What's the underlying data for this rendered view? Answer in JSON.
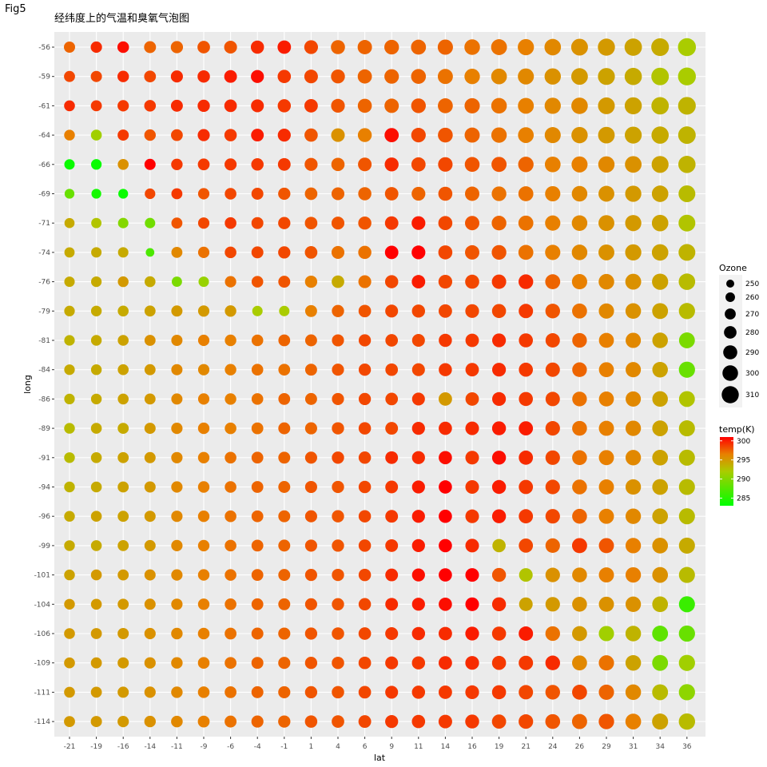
{
  "figure_label": "Fig5",
  "chart_data": {
    "type": "scatter",
    "title": "经纬度上的气温和臭氧气泡图",
    "xlabel": "lat",
    "ylabel": "long",
    "x_ticks": [
      "-21",
      "-19",
      "-16",
      "-14",
      "-11",
      "-9",
      "-6",
      "-4",
      "-1",
      "1",
      "4",
      "6",
      "9",
      "11",
      "14",
      "16",
      "19",
      "21",
      "24",
      "26",
      "29",
      "31",
      "34",
      "36"
    ],
    "y_ticks": [
      "-56",
      "-59",
      "-61",
      "-64",
      "-66",
      "-69",
      "-71",
      "-74",
      "-76",
      "-79",
      "-81",
      "-84",
      "-86",
      "-89",
      "-91",
      "-94",
      "-96",
      "-99",
      "-101",
      "-104",
      "-106",
      "-109",
      "-111",
      "-114"
    ],
    "grid": true,
    "size_legend": {
      "title": "Ozone",
      "breaks": [
        250,
        260,
        270,
        280,
        290,
        300,
        310
      ]
    },
    "color_legend": {
      "title": "temp(K)",
      "breaks": [
        300,
        295,
        290,
        285
      ],
      "range": [
        283,
        301
      ],
      "low_color": "#00ff00",
      "high_color": "#ff0000"
    },
    "colors": {
      "panel_bg": "#ebebeb",
      "grid": "#ffffff"
    },
    "ozone": [
      [
        271,
        272,
        274,
        276,
        278,
        280,
        282,
        284,
        286,
        288,
        290,
        292,
        294,
        296,
        298,
        300,
        302,
        304,
        306,
        308,
        310,
        312,
        314,
        316
      ],
      [
        270,
        271,
        273,
        275,
        277,
        279,
        281,
        283,
        285,
        287,
        289,
        291,
        293,
        295,
        297,
        299,
        301,
        303,
        305,
        307,
        309,
        311,
        313,
        315
      ],
      [
        269,
        270,
        272,
        274,
        276,
        278,
        280,
        282,
        284,
        286,
        288,
        290,
        292,
        294,
        296,
        298,
        300,
        302,
        304,
        306,
        308,
        310,
        312,
        314
      ],
      [
        268,
        269,
        271,
        273,
        275,
        277,
        279,
        281,
        283,
        285,
        287,
        289,
        291,
        293,
        295,
        297,
        299,
        301,
        303,
        305,
        307,
        309,
        311,
        313
      ],
      [
        266,
        267,
        269,
        271,
        273,
        275,
        277,
        279,
        281,
        283,
        285,
        287,
        289,
        291,
        293,
        295,
        297,
        299,
        301,
        303,
        305,
        307,
        309,
        311
      ],
      [
        262,
        262,
        262,
        267,
        270,
        272,
        274,
        276,
        278,
        280,
        282,
        284,
        286,
        288,
        290,
        292,
        294,
        296,
        298,
        300,
        302,
        304,
        306,
        308
      ],
      [
        264,
        265,
        266,
        266,
        270,
        272,
        274,
        276,
        278,
        280,
        282,
        284,
        286,
        288,
        290,
        292,
        294,
        296,
        298,
        300,
        302,
        304,
        306,
        308
      ],
      [
        265,
        266,
        266,
        254,
        270,
        272,
        274,
        276,
        278,
        280,
        282,
        284,
        286,
        288,
        290,
        292,
        294,
        296,
        298,
        300,
        302,
        304,
        306,
        308
      ],
      [
        266,
        267,
        268,
        269,
        265,
        266,
        272,
        274,
        276,
        278,
        280,
        282,
        284,
        286,
        288,
        290,
        292,
        294,
        296,
        298,
        300,
        302,
        304,
        306
      ],
      [
        267,
        268,
        269,
        270,
        271,
        272,
        273,
        266,
        266,
        276,
        278,
        280,
        282,
        284,
        286,
        288,
        290,
        292,
        294,
        296,
        298,
        300,
        302,
        304
      ],
      [
        267,
        268,
        269,
        270,
        271,
        272,
        273,
        274,
        275,
        276,
        277,
        278,
        280,
        282,
        284,
        286,
        288,
        290,
        292,
        294,
        296,
        298,
        300,
        302
      ],
      [
        267,
        268,
        269,
        270,
        271,
        272,
        273,
        274,
        275,
        276,
        277,
        278,
        280,
        282,
        284,
        286,
        288,
        290,
        292,
        294,
        296,
        298,
        300,
        304
      ],
      [
        267,
        268,
        269,
        270,
        271,
        272,
        273,
        274,
        275,
        276,
        277,
        278,
        280,
        282,
        286,
        286,
        288,
        290,
        292,
        294,
        296,
        298,
        300,
        302
      ],
      [
        268,
        269,
        270,
        271,
        272,
        273,
        274,
        275,
        276,
        277,
        278,
        279,
        281,
        283,
        285,
        287,
        289,
        291,
        293,
        295,
        297,
        299,
        301,
        303
      ],
      [
        268,
        269,
        270,
        271,
        272,
        273,
        274,
        275,
        276,
        277,
        278,
        279,
        281,
        283,
        285,
        287,
        289,
        291,
        293,
        295,
        297,
        299,
        301,
        303
      ],
      [
        268,
        269,
        270,
        271,
        272,
        273,
        274,
        275,
        276,
        277,
        278,
        279,
        281,
        283,
        285,
        287,
        289,
        291,
        293,
        295,
        297,
        299,
        301,
        303
      ],
      [
        268,
        269,
        270,
        271,
        272,
        273,
        274,
        275,
        276,
        277,
        278,
        279,
        281,
        283,
        285,
        287,
        289,
        291,
        293,
        295,
        297,
        299,
        301,
        303
      ],
      [
        268,
        269,
        270,
        271,
        272,
        273,
        274,
        275,
        276,
        277,
        278,
        279,
        281,
        283,
        285,
        287,
        285,
        291,
        293,
        297,
        297,
        299,
        301,
        303
      ],
      [
        268,
        269,
        270,
        271,
        272,
        273,
        274,
        275,
        276,
        277,
        278,
        279,
        281,
        283,
        285,
        287,
        289,
        287,
        293,
        295,
        297,
        299,
        301,
        303
      ],
      [
        268,
        269,
        270,
        271,
        272,
        273,
        274,
        275,
        276,
        277,
        278,
        279,
        281,
        283,
        285,
        287,
        289,
        287,
        293,
        295,
        297,
        299,
        301,
        303
      ],
      [
        269,
        270,
        271,
        272,
        273,
        274,
        275,
        276,
        277,
        278,
        279,
        280,
        282,
        284,
        286,
        288,
        290,
        292,
        294,
        296,
        298,
        300,
        302,
        304
      ],
      [
        269,
        270,
        271,
        272,
        273,
        274,
        275,
        276,
        277,
        278,
        279,
        280,
        282,
        284,
        286,
        288,
        290,
        292,
        294,
        296,
        298,
        300,
        302,
        304
      ],
      [
        269,
        270,
        271,
        272,
        273,
        274,
        275,
        276,
        277,
        278,
        279,
        280,
        282,
        284,
        286,
        288,
        290,
        292,
        294,
        296,
        298,
        300,
        302,
        304
      ],
      [
        270,
        271,
        272,
        273,
        274,
        275,
        276,
        277,
        278,
        279,
        280,
        281,
        283,
        285,
        287,
        289,
        291,
        293,
        295,
        297,
        299,
        301,
        303,
        305
      ]
    ],
    "temp": [
      [
        297.5,
        299.5,
        300.5,
        297.5,
        297.5,
        298,
        298,
        299.5,
        300,
        298.5,
        297.5,
        297.5,
        297.5,
        297.5,
        297.5,
        297,
        297,
        296.5,
        296,
        295.5,
        295,
        294.5,
        294,
        292
      ],
      [
        298.5,
        298.5,
        299.5,
        298.5,
        299.5,
        299.5,
        300,
        300.5,
        299,
        298.5,
        298,
        297.5,
        297.5,
        297.5,
        297,
        296.5,
        296,
        296,
        295.5,
        295,
        294.5,
        294,
        292.5,
        292
      ],
      [
        299.5,
        299,
        299,
        299,
        299.5,
        299.5,
        299.5,
        299.5,
        299,
        299,
        298,
        297.5,
        297.5,
        298,
        297.5,
        297.5,
        297,
        296.5,
        296,
        296,
        295,
        294.5,
        293.5,
        293.5
      ],
      [
        296.5,
        291.5,
        299,
        298,
        298.5,
        299.5,
        299,
        300,
        299.5,
        298,
        295.5,
        296.5,
        300.5,
        298.5,
        298,
        297.5,
        297,
        296.5,
        296,
        295.5,
        295,
        294.5,
        294,
        293.5
      ],
      [
        283.5,
        283.5,
        295.5,
        301,
        299,
        299,
        299,
        299,
        299,
        298,
        297.5,
        298,
        299.5,
        298.5,
        298.5,
        298,
        298,
        297.5,
        296.5,
        296.5,
        296,
        295.5,
        294.5,
        293.5
      ],
      [
        288.5,
        284,
        283.5,
        298.5,
        299,
        298,
        298.5,
        298.5,
        298,
        297.5,
        297.5,
        297.5,
        298,
        297.5,
        298,
        297.5,
        297,
        297,
        296.5,
        296,
        295.5,
        295,
        294.5,
        293
      ],
      [
        294,
        292.5,
        290,
        289,
        298,
        298.5,
        299,
        298.5,
        298.5,
        298,
        298,
        298,
        299,
        300,
        298.5,
        298,
        297.5,
        297,
        296.5,
        296,
        295.5,
        295,
        294.5,
        292.5
      ],
      [
        294,
        294,
        294,
        287,
        296,
        297,
        298.5,
        298.5,
        298.5,
        298,
        297,
        297,
        301,
        301,
        298.5,
        298,
        298,
        297,
        296.5,
        296,
        295.5,
        295,
        294.5,
        293.5
      ],
      [
        294,
        294,
        295,
        294,
        289.5,
        291,
        297,
        298,
        298,
        296.5,
        294,
        297,
        298.5,
        300,
        298.5,
        298.5,
        299,
        299.5,
        297.5,
        296.5,
        296,
        295.5,
        294.5,
        293
      ],
      [
        294,
        294,
        294,
        294.5,
        295,
        295,
        295,
        292,
        292,
        296.5,
        297.5,
        298,
        298.5,
        298.5,
        298.5,
        298.5,
        298.5,
        299,
        298,
        297,
        296,
        295.5,
        294.5,
        293
      ],
      [
        293.5,
        294,
        294.5,
        295.5,
        296,
        296.5,
        296.5,
        297,
        297.5,
        297.5,
        298,
        298.5,
        298.5,
        298.5,
        299,
        299,
        299.5,
        299,
        298.5,
        297.5,
        296.5,
        296,
        294.5,
        289.5
      ],
      [
        294,
        294,
        294.5,
        295,
        296,
        296,
        296.5,
        297,
        297,
        297.5,
        298,
        298.5,
        298.5,
        298.5,
        299,
        299,
        299.5,
        299,
        298.5,
        297.5,
        296.5,
        296,
        294.5,
        288.5
      ],
      [
        293.5,
        294,
        294.5,
        295,
        296,
        296.5,
        296.5,
        297,
        297.5,
        297.5,
        298,
        298.5,
        298.5,
        299,
        295,
        298.5,
        299.5,
        299,
        298.5,
        297,
        296.5,
        296,
        294.5,
        292.5
      ],
      [
        293,
        294,
        294,
        295,
        296,
        296.5,
        296.5,
        297,
        297.5,
        297.5,
        298,
        298.5,
        298.5,
        299.5,
        299.5,
        299.5,
        300,
        300,
        298.5,
        297,
        296.5,
        296,
        294.5,
        293
      ],
      [
        293,
        294,
        294.5,
        295,
        296,
        296.5,
        297,
        297.5,
        297.5,
        298,
        298.5,
        298.5,
        299.5,
        299.5,
        300.5,
        299,
        300.5,
        299.5,
        298.5,
        297,
        296.5,
        296,
        294.5,
        293
      ],
      [
        293.5,
        294,
        294.5,
        295,
        296,
        296.5,
        297,
        297.5,
        297.5,
        298,
        298,
        298.5,
        299,
        300,
        301,
        299,
        300,
        299,
        298.5,
        297,
        296.5,
        295.5,
        294.5,
        293
      ],
      [
        294,
        294.5,
        294.5,
        295,
        296,
        296.5,
        297,
        297.5,
        297.5,
        298,
        298,
        298.5,
        299,
        300,
        301,
        299,
        300,
        299,
        298.5,
        297.5,
        296.5,
        296,
        294.5,
        293
      ],
      [
        294,
        294,
        294.5,
        295,
        296,
        296.5,
        297,
        297.5,
        297.5,
        298,
        298,
        298.5,
        299,
        300,
        301,
        299.5,
        293.5,
        298.5,
        297.5,
        299,
        298,
        296.5,
        295.5,
        294
      ],
      [
        294.5,
        295,
        295,
        295.5,
        296,
        296.5,
        297,
        297.5,
        297.5,
        298,
        298,
        298.5,
        299.5,
        300.5,
        301.5,
        301.5,
        298,
        292.5,
        295.5,
        296,
        296.5,
        296.5,
        295.5,
        293
      ],
      [
        295,
        295,
        295,
        295.5,
        296,
        296.5,
        297,
        297.5,
        297.5,
        298,
        298,
        298.5,
        299.5,
        300,
        300.5,
        301,
        299.5,
        294.5,
        295,
        295.5,
        295.5,
        295.5,
        293.5,
        286
      ],
      [
        295,
        295,
        295,
        295.5,
        296,
        296.5,
        297,
        297.5,
        297.5,
        298,
        298,
        298.5,
        299,
        299.5,
        299.5,
        300,
        299,
        300,
        297,
        295,
        291.5,
        293.5,
        288,
        288.5
      ],
      [
        295,
        295,
        295,
        295.5,
        296,
        296.5,
        297,
        297.5,
        297.5,
        298,
        298,
        298.5,
        299,
        299,
        299.5,
        299.5,
        299,
        299,
        299.5,
        296,
        297,
        294.5,
        289.5,
        291.5
      ],
      [
        295,
        295,
        295,
        295.5,
        296,
        296.5,
        297,
        297.5,
        297.5,
        298,
        298,
        298.5,
        299,
        299,
        299,
        299,
        299,
        298.5,
        298,
        298.5,
        297.5,
        296,
        293,
        290.5
      ],
      [
        295,
        295,
        295,
        295.5,
        296,
        296.5,
        297,
        297.5,
        297.5,
        298,
        298,
        298.5,
        299,
        299,
        299,
        299,
        298.5,
        298.5,
        298,
        297.5,
        298,
        296.5,
        294.5,
        293
      ]
    ]
  }
}
